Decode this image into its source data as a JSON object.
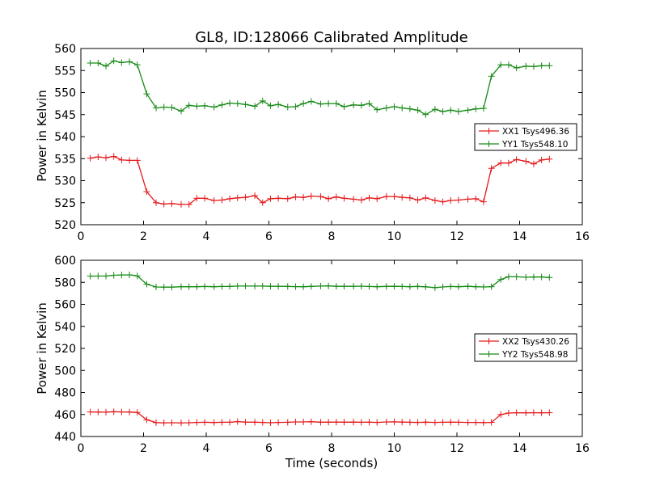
{
  "title": "GL8, ID:128066 Calibrated Amplitude",
  "xlabel": "Time (seconds)",
  "colors": {
    "xx": "#e41a1c",
    "yy": "#178a17"
  },
  "chart_data": [
    {
      "type": "line",
      "ylabel": "Power in Kelvin",
      "xlim": [
        0,
        16
      ],
      "ylim": [
        520,
        560
      ],
      "xticks": [
        0,
        2,
        4,
        6,
        8,
        10,
        12,
        14,
        16
      ],
      "yticks": [
        520,
        525,
        530,
        535,
        540,
        545,
        550,
        555,
        560
      ],
      "legend_position": "center-right",
      "x": [
        0.3,
        0.55,
        0.8,
        1.05,
        1.3,
        1.55,
        1.8,
        2.1,
        2.4,
        2.65,
        2.9,
        3.2,
        3.45,
        3.7,
        3.95,
        4.25,
        4.5,
        4.75,
        5.0,
        5.25,
        5.55,
        5.8,
        6.05,
        6.3,
        6.6,
        6.85,
        7.1,
        7.35,
        7.65,
        7.9,
        8.15,
        8.4,
        8.7,
        8.95,
        9.2,
        9.45,
        9.75,
        10.0,
        10.25,
        10.5,
        10.75,
        11.0,
        11.3,
        11.55,
        11.8,
        12.05,
        12.35,
        12.6,
        12.85,
        13.1,
        13.4,
        13.65,
        13.9,
        14.2,
        14.45,
        14.7,
        14.95
      ],
      "series": [
        {
          "name": "XX1 Tsys496.36",
          "color_key": "xx",
          "values": [
            535.1,
            535.4,
            535.2,
            535.5,
            534.7,
            534.6,
            534.6,
            527.5,
            525.0,
            524.7,
            524.8,
            524.6,
            524.6,
            526.0,
            526.0,
            525.5,
            525.6,
            525.9,
            526.1,
            526.2,
            526.6,
            525.0,
            525.9,
            526.0,
            525.9,
            526.3,
            526.2,
            526.5,
            526.4,
            525.9,
            526.3,
            526.0,
            525.8,
            525.6,
            526.1,
            525.9,
            526.4,
            526.4,
            526.2,
            526.1,
            525.6,
            526.1,
            525.5,
            525.2,
            525.5,
            525.6,
            525.8,
            525.9,
            525.2,
            532.8,
            534.0,
            534.0,
            534.8,
            534.4,
            533.8,
            534.7,
            534.9
          ]
        },
        {
          "name": "YY1 Tsys548.10",
          "color_key": "yy",
          "values": [
            556.7,
            556.7,
            556.0,
            557.2,
            556.8,
            557.0,
            556.3,
            549.7,
            546.5,
            546.7,
            546.6,
            545.8,
            547.1,
            546.9,
            547.0,
            546.7,
            547.2,
            547.6,
            547.5,
            547.3,
            546.9,
            548.1,
            547.0,
            547.3,
            546.7,
            546.8,
            547.5,
            548.0,
            547.4,
            547.5,
            547.5,
            546.8,
            547.2,
            547.1,
            547.5,
            546.1,
            546.5,
            546.8,
            546.5,
            546.3,
            546.0,
            545.0,
            546.2,
            545.7,
            546.0,
            545.7,
            546.0,
            546.3,
            546.4,
            553.7,
            556.3,
            556.3,
            555.6,
            556.0,
            555.9,
            556.1,
            556.1
          ]
        }
      ]
    },
    {
      "type": "line",
      "ylabel": "Power in Kelvin",
      "xlim": [
        0,
        16
      ],
      "ylim": [
        440,
        600
      ],
      "xticks": [
        0,
        2,
        4,
        6,
        8,
        10,
        12,
        14,
        16
      ],
      "yticks": [
        440,
        460,
        480,
        500,
        520,
        540,
        560,
        580,
        600
      ],
      "legend_position": "center-right",
      "x": [
        0.3,
        0.55,
        0.8,
        1.05,
        1.3,
        1.55,
        1.8,
        2.1,
        2.4,
        2.65,
        2.9,
        3.2,
        3.45,
        3.7,
        3.95,
        4.25,
        4.5,
        4.75,
        5.0,
        5.25,
        5.55,
        5.8,
        6.05,
        6.3,
        6.6,
        6.85,
        7.1,
        7.35,
        7.65,
        7.9,
        8.15,
        8.4,
        8.7,
        8.95,
        9.2,
        9.45,
        9.75,
        10.0,
        10.25,
        10.5,
        10.75,
        11.0,
        11.3,
        11.55,
        11.8,
        12.05,
        12.35,
        12.6,
        12.85,
        13.1,
        13.4,
        13.65,
        13.9,
        14.2,
        14.45,
        14.7,
        14.95
      ],
      "series": [
        {
          "name": "XX2 Tsys430.26",
          "color_key": "xx",
          "values": [
            462.3,
            462.2,
            462.1,
            462.5,
            462.3,
            462.2,
            461.9,
            455.2,
            452.6,
            452.4,
            452.5,
            452.4,
            452.5,
            452.8,
            452.9,
            452.7,
            452.9,
            452.9,
            453.5,
            453.1,
            453.0,
            452.8,
            452.5,
            452.8,
            452.9,
            453.2,
            453.2,
            453.4,
            453.0,
            453.0,
            453.1,
            453.0,
            453.1,
            452.9,
            453.0,
            452.8,
            453.2,
            453.3,
            453.1,
            452.9,
            452.8,
            453.0,
            452.8,
            452.9,
            453.0,
            452.9,
            452.8,
            452.8,
            452.6,
            452.8,
            460.0,
            461.3,
            461.6,
            461.5,
            461.6,
            461.5,
            461.6
          ]
        },
        {
          "name": "YY2 Tsys548.98",
          "color_key": "yy",
          "values": [
            585.6,
            585.7,
            585.7,
            586.4,
            586.7,
            586.8,
            585.8,
            578.3,
            575.8,
            575.6,
            575.6,
            576.0,
            576.0,
            576.0,
            576.2,
            576.0,
            576.2,
            576.3,
            576.6,
            576.6,
            576.6,
            576.6,
            576.4,
            576.4,
            576.3,
            576.1,
            576.0,
            576.3,
            576.6,
            576.7,
            576.4,
            576.4,
            576.4,
            576.5,
            576.2,
            576.0,
            576.3,
            576.4,
            576.2,
            576.0,
            576.3,
            575.9,
            575.2,
            575.8,
            576.2,
            576.0,
            576.4,
            576.0,
            575.8,
            576.0,
            582.6,
            585.0,
            585.0,
            584.6,
            584.8,
            584.9,
            584.4
          ]
        }
      ]
    }
  ]
}
